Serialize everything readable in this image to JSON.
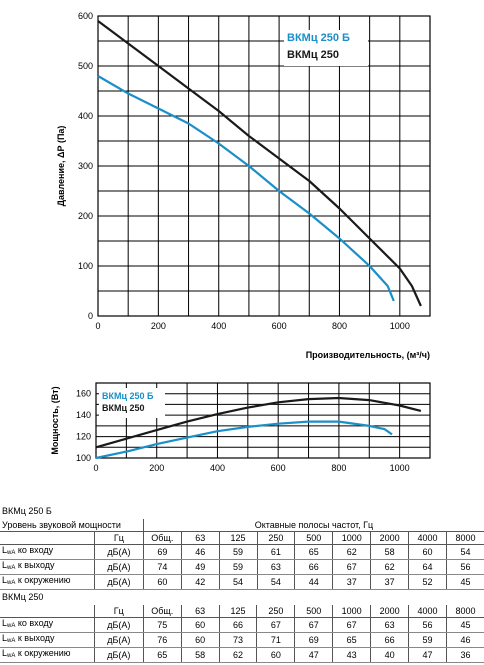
{
  "chart_data": [
    {
      "type": "line",
      "xlabel": "Производительность, (м³/ч)",
      "ylabel": "Давление, ΔР (Па)",
      "xlim": [
        0,
        1100
      ],
      "ylim": [
        0,
        600
      ],
      "x_ticks": [
        0,
        200,
        400,
        600,
        800,
        1000
      ],
      "y_ticks": [
        0,
        100,
        200,
        300,
        400,
        500,
        600
      ],
      "grid": true,
      "legend": "top-right",
      "series": [
        {
          "name": "ВКМц 250 Б",
          "color": "#1a8fc9",
          "x": [
            0,
            100,
            200,
            300,
            400,
            500,
            600,
            700,
            800,
            900,
            960,
            980
          ],
          "y": [
            480,
            445,
            415,
            385,
            345,
            300,
            250,
            205,
            155,
            100,
            60,
            30
          ]
        },
        {
          "name": "ВКМц 250",
          "color": "#1a1a1a",
          "x": [
            0,
            100,
            200,
            300,
            400,
            500,
            600,
            700,
            800,
            900,
            1000,
            1040,
            1070
          ],
          "y": [
            590,
            545,
            500,
            455,
            410,
            360,
            315,
            270,
            215,
            155,
            95,
            60,
            20
          ]
        }
      ]
    },
    {
      "type": "line",
      "ylabel": "Мощность, (Вт)",
      "xlim": [
        0,
        1100
      ],
      "ylim": [
        100,
        170
      ],
      "x_ticks": [
        0,
        200,
        400,
        600,
        800,
        1000
      ],
      "y_ticks": [
        100,
        120,
        140,
        160
      ],
      "grid": true,
      "legend": "top-left",
      "series": [
        {
          "name": "ВКМц 250 Б",
          "color": "#1a8fc9",
          "x": [
            0,
            100,
            200,
            300,
            400,
            500,
            600,
            700,
            800,
            900,
            950,
            975
          ],
          "y": [
            100,
            106,
            113,
            119,
            125,
            129,
            132,
            134,
            134,
            130,
            127,
            122
          ]
        },
        {
          "name": "ВКМц 250",
          "color": "#1a1a1a",
          "x": [
            0,
            100,
            200,
            300,
            400,
            500,
            600,
            700,
            800,
            900,
            1000,
            1070
          ],
          "y": [
            110,
            118,
            126,
            134,
            141,
            147,
            152,
            155,
            156,
            154,
            149,
            144
          ]
        }
      ]
    }
  ],
  "tables": {
    "a": {
      "title": "ВКМц 250 Б",
      "caption": "Уровень звуковой мощности",
      "band_header": "Октавные полосы частот, Гц",
      "unit_header": "Гц",
      "cols": [
        "Общ.",
        "63",
        "125",
        "250",
        "500",
        "1000",
        "2000",
        "4000",
        "8000"
      ],
      "rows": [
        {
          "sub": "wA",
          "label": "ко входу",
          "unit": "дБ(А)",
          "vals": [
            "69",
            "46",
            "59",
            "61",
            "65",
            "62",
            "58",
            "60",
            "54"
          ]
        },
        {
          "sub": "wA",
          "label": "к выходу",
          "unit": "дБ(А)",
          "vals": [
            "74",
            "49",
            "59",
            "63",
            "66",
            "67",
            "62",
            "64",
            "56"
          ]
        },
        {
          "sub": "wA",
          "label": "к окружению",
          "unit": "дБ(А)",
          "vals": [
            "60",
            "42",
            "54",
            "54",
            "44",
            "37",
            "37",
            "52",
            "45"
          ]
        }
      ]
    },
    "b": {
      "title": "ВКМц 250",
      "unit_header": "Гц",
      "cols": [
        "Общ.",
        "63",
        "125",
        "250",
        "500",
        "1000",
        "2000",
        "4000",
        "8000"
      ],
      "rows": [
        {
          "sub": "wA",
          "label": "ко входу",
          "unit": "дБ(А)",
          "vals": [
            "75",
            "60",
            "66",
            "67",
            "67",
            "67",
            "63",
            "56",
            "45"
          ]
        },
        {
          "sub": "wA",
          "label": "к выходу",
          "unit": "дБ(А)",
          "vals": [
            "76",
            "60",
            "73",
            "71",
            "69",
            "65",
            "66",
            "59",
            "46"
          ]
        },
        {
          "sub": "wA",
          "label": "к окружению",
          "unit": "дБ(А)",
          "vals": [
            "65",
            "58",
            "62",
            "60",
            "47",
            "43",
            "40",
            "47",
            "36"
          ]
        }
      ]
    }
  }
}
